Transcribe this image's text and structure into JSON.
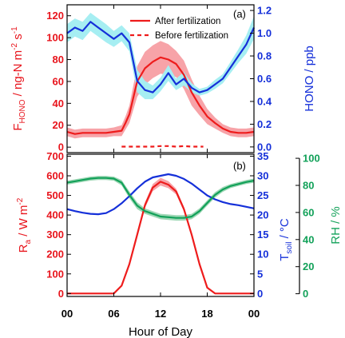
{
  "chart_data": [
    {
      "type": "line",
      "panel_label": "(a)",
      "x_ticks": [
        "00",
        "06",
        "12",
        "18",
        "00"
      ],
      "xlim": [
        0,
        24
      ],
      "ylabel_left": {
        "main": "F",
        "sub": "HONO",
        "rest": " / ng-N m",
        "sup": "-2",
        "rest2": " s",
        "sup2": "-1"
      },
      "ylabel_right": "HONO / ppb",
      "ylim_left": [
        -5,
        130
      ],
      "ylim_right": [
        -0.05,
        1.25
      ],
      "yticks_left": [
        "0",
        "20",
        "40",
        "60",
        "80",
        "100",
        "120"
      ],
      "yticks_right": [
        "0.0",
        "0.2",
        "0.4",
        "0.6",
        "0.8",
        "1.0",
        "1.2"
      ],
      "legend": {
        "placement": "top-right",
        "entries": [
          "After fertilization",
          "Before fertilization"
        ]
      },
      "series": [
        {
          "name": "After fertilization",
          "axis": "left",
          "style": "solid",
          "color": "#ee1c1c",
          "band_color": "#f7a3a8",
          "x": [
            0,
            1,
            2,
            3,
            4,
            5,
            6,
            7,
            7.5,
            8,
            9,
            10,
            11,
            12,
            13,
            14,
            15,
            16,
            17,
            18,
            19,
            20,
            21,
            22,
            23,
            24
          ],
          "values": [
            14,
            12,
            13,
            13,
            13,
            13,
            14,
            15,
            22,
            30,
            60,
            72,
            78,
            82,
            80,
            76,
            66,
            50,
            38,
            28,
            22,
            17,
            14,
            13,
            13,
            14
          ],
          "band": [
            4,
            4,
            4,
            4,
            4,
            4,
            4,
            5,
            6,
            8,
            14,
            15,
            15,
            15,
            14,
            12,
            13,
            12,
            9,
            7,
            5,
            4,
            4,
            4,
            4,
            4
          ]
        },
        {
          "name": "Before fertilization",
          "axis": "left",
          "style": "dashed",
          "color": "#ee1c1c",
          "x": [
            7,
            8,
            9,
            10,
            11,
            12,
            13,
            14,
            15,
            16,
            17,
            17.5
          ],
          "values": [
            0.5,
            0.5,
            0.5,
            0.5,
            0.5,
            1,
            1,
            0.5,
            1,
            0.5,
            0.5,
            0.5
          ]
        },
        {
          "name": "HONO",
          "axis": "right",
          "style": "solid",
          "color": "#1530d9",
          "band_color": "#a6eef2",
          "x": [
            0,
            1,
            2,
            3,
            4,
            5,
            6,
            7,
            8,
            9,
            10,
            11,
            12,
            13,
            14,
            15,
            16,
            17,
            18,
            19,
            20,
            21,
            22,
            23,
            24
          ],
          "values": [
            1.0,
            1.05,
            1.02,
            1.1,
            1.05,
            1.0,
            0.95,
            1.0,
            0.92,
            0.58,
            0.5,
            0.48,
            0.55,
            0.65,
            0.55,
            0.6,
            0.52,
            0.48,
            0.5,
            0.55,
            0.6,
            0.7,
            0.8,
            0.9,
            1.05
          ],
          "band": [
            0.08,
            0.08,
            0.08,
            0.08,
            0.08,
            0.08,
            0.07,
            0.07,
            0.08,
            0.1,
            0.08,
            0.06,
            0.06,
            0.07,
            0.05,
            0.06,
            0.04,
            0.03,
            0.03,
            0.04,
            0.04,
            0.05,
            0.06,
            0.08,
            0.1
          ]
        }
      ]
    },
    {
      "type": "line",
      "panel_label": "(b)",
      "x_ticks": [
        "00",
        "06",
        "12",
        "18",
        "00"
      ],
      "xlabel": "Hour of Day",
      "xlim": [
        0,
        24
      ],
      "ylabel_left": {
        "main": "R",
        "sub": "a",
        "rest": " / W m",
        "sup": "-2"
      },
      "ylabel_mid": {
        "main": "T",
        "sub": "soil",
        "rest": " / °C"
      },
      "ylabel_right": "RH / %",
      "ylim_left": [
        -15,
        710
      ],
      "ylim_mid": [
        -0.75,
        35.5
      ],
      "ylim_right": [
        -2,
        103
      ],
      "yticks_left": [
        "0",
        "100",
        "200",
        "300",
        "400",
        "500",
        "600",
        "700"
      ],
      "yticks_mid": [
        "0",
        "5",
        "10",
        "15",
        "20",
        "25",
        "30",
        "35"
      ],
      "yticks_right": [
        "0",
        "20",
        "40",
        "60",
        "80",
        "100"
      ],
      "series": [
        {
          "name": "Ra",
          "axis": "left",
          "color": "#ee1c1c",
          "band_color": "#f7a3a8",
          "x": [
            0,
            1,
            2,
            3,
            4,
            5,
            6,
            7,
            8,
            9,
            10,
            11,
            12,
            13,
            14,
            15,
            16,
            17,
            18,
            19,
            20,
            21,
            22,
            23,
            24
          ],
          "values": [
            0,
            0,
            0,
            0,
            0,
            0,
            0,
            40,
            150,
            300,
            450,
            540,
            570,
            555,
            520,
            430,
            300,
            150,
            30,
            0,
            0,
            0,
            0,
            0,
            0
          ],
          "band": [
            0,
            0,
            0,
            0,
            0,
            0,
            0,
            5,
            8,
            12,
            15,
            18,
            20,
            18,
            15,
            12,
            10,
            8,
            4,
            0,
            0,
            0,
            0,
            0,
            0
          ]
        },
        {
          "name": "Tsoil",
          "axis": "mid",
          "color": "#1530d9",
          "x": [
            0,
            1,
            2,
            3,
            4,
            5,
            6,
            7,
            8,
            9,
            10,
            11,
            12,
            13,
            14,
            15,
            16,
            17,
            18,
            19,
            20,
            21,
            22,
            23,
            24
          ],
          "values": [
            21.5,
            21.0,
            20.6,
            20.3,
            20.2,
            20.5,
            21.5,
            23.0,
            24.8,
            26.8,
            28.5,
            29.6,
            30.0,
            30.4,
            30.0,
            29.2,
            28.0,
            26.5,
            25.0,
            24.0,
            23.3,
            22.8,
            22.5,
            22.1,
            21.7
          ]
        },
        {
          "name": "RH",
          "axis": "right",
          "color": "#12a159",
          "band_color": "#9ed7b5",
          "x": [
            0,
            1,
            2,
            3,
            4,
            5,
            6,
            7,
            8,
            9,
            10,
            11,
            12,
            13,
            14,
            15,
            16,
            17,
            18,
            19,
            20,
            21,
            22,
            23,
            24
          ],
          "values": [
            82,
            83,
            84,
            85,
            85.5,
            85.5,
            85,
            82,
            73,
            65,
            61,
            59,
            57,
            56.5,
            56,
            56,
            57,
            61,
            67,
            73,
            77,
            79.5,
            81,
            82.5,
            83.5
          ],
          "band": [
            1.5,
            1.5,
            1.5,
            1.5,
            1.5,
            1.5,
            1.5,
            2,
            2.5,
            2.5,
            2,
            2,
            2,
            2,
            2,
            2,
            2,
            2,
            2,
            2,
            1.8,
            1.5,
            1.5,
            1.5,
            1.5
          ]
        }
      ]
    }
  ]
}
